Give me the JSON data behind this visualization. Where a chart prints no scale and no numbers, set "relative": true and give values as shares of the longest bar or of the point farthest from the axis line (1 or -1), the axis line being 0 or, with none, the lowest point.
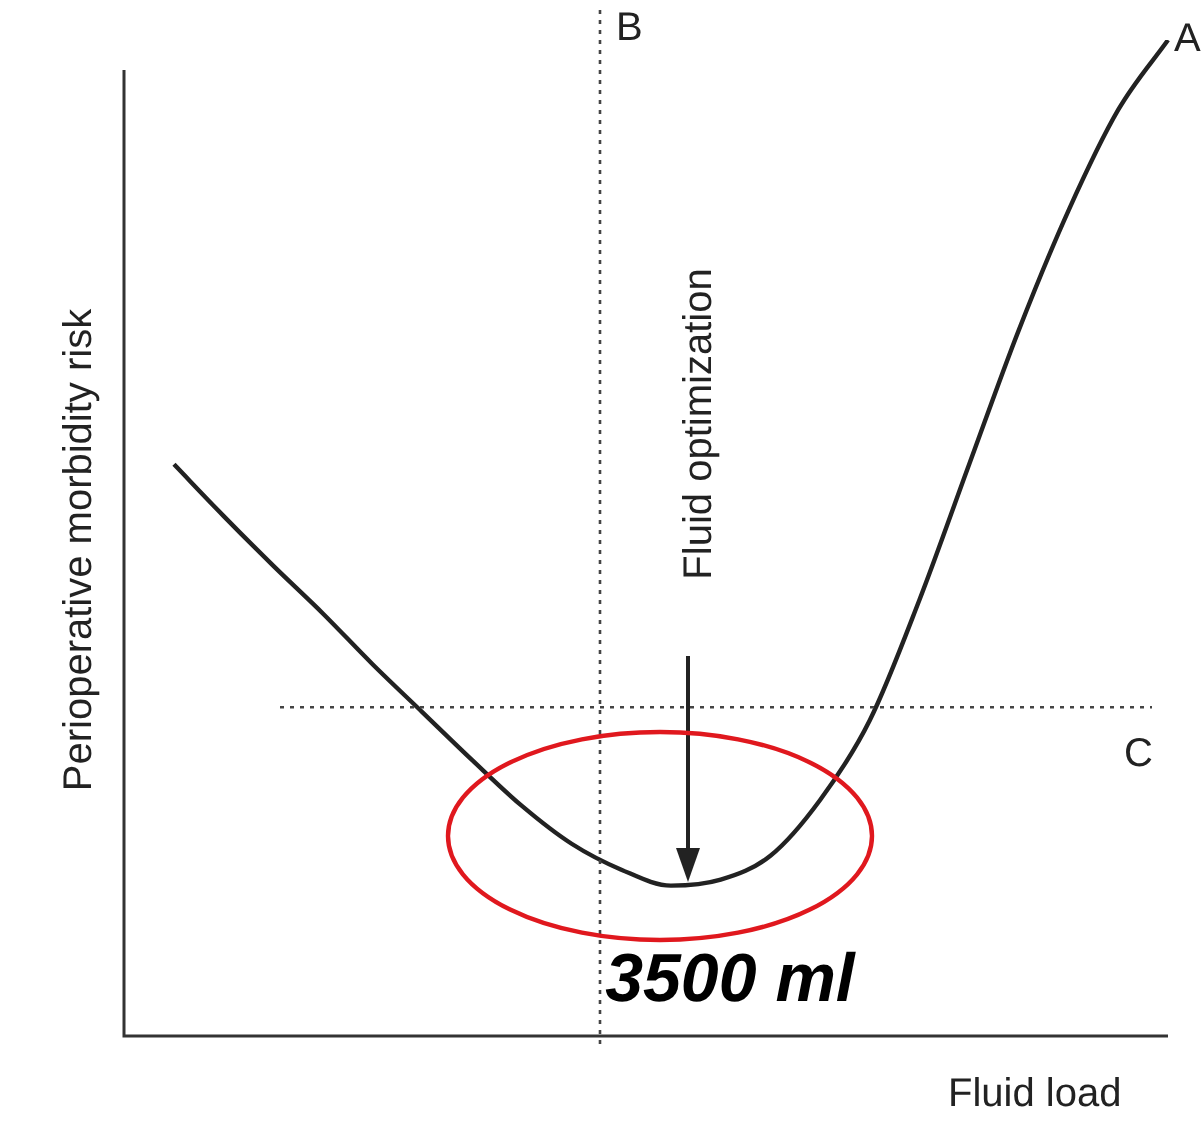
{
  "chart_data": {
    "type": "line",
    "relative": true,
    "marker": "none",
    "legend": false,
    "ylabel": "Perioperative morbidity risk",
    "xlabel": "Fluid load",
    "categories": [
      null,
      null,
      null,
      null,
      null,
      null,
      null,
      null,
      null,
      null,
      null,
      null,
      null,
      null,
      null,
      null,
      null,
      null,
      null,
      null,
      null
    ],
    "series": [
      {
        "name": "A",
        "color": "#222222",
        "values": [
          0.574,
          0.522,
          0.472,
          0.424,
          0.373,
          0.325,
          0.277,
          0.231,
          0.193,
          0.167,
          0.151,
          0.157,
          0.181,
          0.237,
          0.317,
          0.438,
          0.574,
          0.709,
          0.829,
          0.93,
          1
        ]
      }
    ],
    "ref_lines": [
      {
        "axis": "y",
        "value": 0.33,
        "label": "C",
        "line_style": "dotted"
      }
    ],
    "annotations": [
      "Fluid optimization",
      "3500 ml",
      "B"
    ]
  }
}
